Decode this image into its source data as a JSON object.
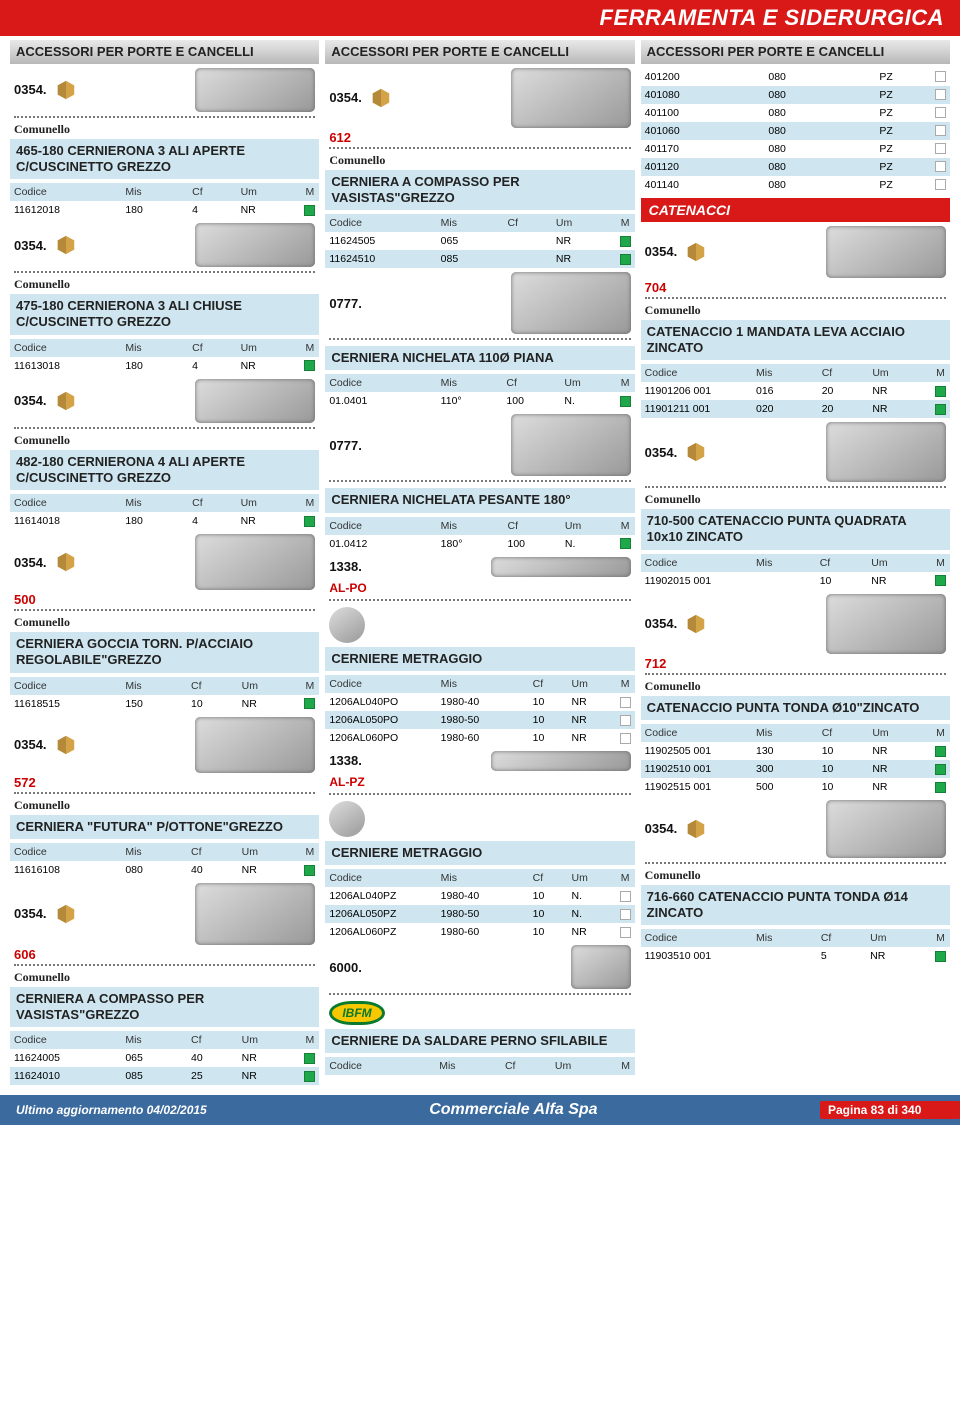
{
  "header": {
    "title": "FERRAMENTA E SIDERURGICA"
  },
  "footer": {
    "updated_label": "Ultimo aggiornamento 04/02/2015",
    "company": "Commerciale Alfa Spa",
    "page": "Pagina 83 di 340"
  },
  "common": {
    "brand_comunello": "Comunello",
    "th_codice": "Codice",
    "th_mis": "Mis",
    "th_cf": "Cf",
    "th_um": "Um",
    "th_m": "M"
  },
  "col1": {
    "cat_title": "ACCESSORI PER PORTE E CANCELLI",
    "s1": {
      "prefix": "0354.",
      "title": "465-180 CERNIERONA 3 ALI APERTE C/CUSCINETTO  GREZZO",
      "rows": [
        {
          "codice": "11612018",
          "mis": "180",
          "cf": "4",
          "um": "NR",
          "color": "green"
        }
      ]
    },
    "s2": {
      "prefix": "0354.",
      "title": "475-180 CERNIERONA 3 ALI CHIUSE C/CUSCINETTO  GREZZO",
      "rows": [
        {
          "codice": "11613018",
          "mis": "180",
          "cf": "4",
          "um": "NR",
          "color": "green"
        }
      ]
    },
    "s3": {
      "prefix": "0354.",
      "title": "482-180 CERNIERONA 4 ALI APERTE C/CUSCINETTO  GREZZO",
      "rows": [
        {
          "codice": "11614018",
          "mis": "180",
          "cf": "4",
          "um": "NR",
          "color": "green"
        }
      ]
    },
    "s4": {
      "prefix": "0354.",
      "rednum": "500",
      "title": "CERNIERA GOCCIA TORN. P/ACCIAIO REGOLABILE\"GREZZO",
      "rows": [
        {
          "codice": "11618515",
          "mis": "150",
          "cf": "10",
          "um": "NR",
          "color": "green"
        }
      ]
    },
    "s5": {
      "prefix": "0354.",
      "rednum": "572",
      "title": "CERNIERA \"FUTURA\" P/OTTONE\"GREZZO",
      "rows": [
        {
          "codice": "11616108",
          "mis": "080",
          "cf": "40",
          "um": "NR",
          "color": "green"
        }
      ]
    },
    "s6": {
      "prefix": "0354.",
      "rednum": "606",
      "title": "CERNIERA A COMPASSO PER VASISTAS\"GREZZO",
      "rows": [
        {
          "codice": "11624005",
          "mis": "065",
          "cf": "40",
          "um": "NR",
          "color": "green"
        },
        {
          "codice": "11624010",
          "mis": "085",
          "cf": "25",
          "um": "NR",
          "color": "green",
          "alt": true
        }
      ]
    }
  },
  "col2": {
    "cat_title": "ACCESSORI PER PORTE E CANCELLI",
    "s1": {
      "prefix": "0354.",
      "rednum": "612",
      "title": "CERNIERA A COMPASSO PER VASISTAS\"GREZZO",
      "rows": [
        {
          "codice": "11624505",
          "mis": "065",
          "cf": "",
          "um": "NR",
          "color": "green"
        },
        {
          "codice": "11624510",
          "mis": "085",
          "cf": "",
          "um": "NR",
          "color": "green",
          "alt": true
        }
      ]
    },
    "s2": {
      "prefix": "0777.",
      "title": "CERNIERA NICHELATA 110Ø PIANA",
      "rows": [
        {
          "codice": "01.0401",
          "mis": "110°",
          "cf": "100",
          "um": "N.",
          "color": "green"
        }
      ]
    },
    "s3": {
      "prefix": "0777.",
      "title": "CERNIERA NICHELATA PESANTE 180°",
      "rows": [
        {
          "codice": "01.0412",
          "mis": "180°",
          "cf": "100",
          "um": "N.",
          "color": "green"
        }
      ]
    },
    "s4": {
      "prefix": "1338.",
      "redlabel": "AL-PO",
      "title": "CERNIERE METRAGGIO",
      "rows": [
        {
          "codice": "1206AL040PO",
          "mis": "1980-40",
          "cf": "10",
          "um": "NR",
          "color": "white"
        },
        {
          "codice": "1206AL050PO",
          "mis": "1980-50",
          "cf": "10",
          "um": "NR",
          "color": "white",
          "alt": true
        },
        {
          "codice": "1206AL060PO",
          "mis": "1980-60",
          "cf": "10",
          "um": "NR",
          "color": "white"
        }
      ]
    },
    "s5": {
      "prefix": "1338.",
      "redlabel": "AL-PZ",
      "title": "CERNIERE METRAGGIO",
      "rows": [
        {
          "codice": "1206AL040PZ",
          "mis": "1980-40",
          "cf": "10",
          "um": "N.",
          "color": "white"
        },
        {
          "codice": "1206AL050PZ",
          "mis": "1980-50",
          "cf": "10",
          "um": "N.",
          "color": "white",
          "alt": true
        },
        {
          "codice": "1206AL060PZ",
          "mis": "1980-60",
          "cf": "10",
          "um": "NR",
          "color": "white"
        }
      ]
    },
    "s6": {
      "prefix": "6000.",
      "badge": "IBFM",
      "title": "CERNIERE DA SALDARE PERNO SFILABILE"
    }
  },
  "col3": {
    "cat_title": "ACCESSORI PER PORTE E CANCELLI",
    "pzrows": [
      {
        "codice": "401200",
        "mis": "080",
        "um": "PZ",
        "color": "white"
      },
      {
        "codice": "401080",
        "mis": "080",
        "um": "PZ",
        "color": "white",
        "alt": true
      },
      {
        "codice": "401100",
        "mis": "080",
        "um": "PZ",
        "color": "white"
      },
      {
        "codice": "401060",
        "mis": "080",
        "um": "PZ",
        "color": "white",
        "alt": true
      },
      {
        "codice": "401170",
        "mis": "080",
        "um": "PZ",
        "color": "white"
      },
      {
        "codice": "401120",
        "mis": "080",
        "um": "PZ",
        "color": "white",
        "alt": true
      },
      {
        "codice": "401140",
        "mis": "080",
        "um": "PZ",
        "color": "white"
      }
    ],
    "catenacci": "CATENACCI",
    "s1": {
      "prefix": "0354.",
      "rednum": "704",
      "title": "CATENACCIO 1 MANDATA LEVA ACCIAIO ZINCATO",
      "rows": [
        {
          "codice": "11901206 001",
          "mis": "016",
          "cf": "20",
          "um": "NR",
          "color": "green"
        },
        {
          "codice": "11901211 001",
          "mis": "020",
          "cf": "20",
          "um": "NR",
          "color": "green",
          "alt": true
        }
      ]
    },
    "s2": {
      "prefix": "0354.",
      "title": "710-500 CATENACCIO PUNTA QUADRATA 10x10  ZINCATO",
      "rows": [
        {
          "codice": "11902015 001",
          "mis": "",
          "cf": "10",
          "um": "NR",
          "color": "green"
        }
      ]
    },
    "s3": {
      "prefix": "0354.",
      "rednum": "712",
      "title": "CATENACCIO PUNTA TONDA Ø10\"ZINCATO",
      "rows": [
        {
          "codice": "11902505 001",
          "mis": "130",
          "cf": "10",
          "um": "NR",
          "color": "green"
        },
        {
          "codice": "11902510 001",
          "mis": "300",
          "cf": "10",
          "um": "NR",
          "color": "green",
          "alt": true
        },
        {
          "codice": "11902515 001",
          "mis": "500",
          "cf": "10",
          "um": "NR",
          "color": "green"
        }
      ]
    },
    "s4": {
      "prefix": "0354.",
      "title": "716-660 CATENACCIO PUNTA TONDA Ø14  ZINCATO",
      "rows": [
        {
          "codice": "11903510 001",
          "mis": "",
          "cf": "5",
          "um": "NR",
          "color": "green"
        }
      ]
    }
  }
}
